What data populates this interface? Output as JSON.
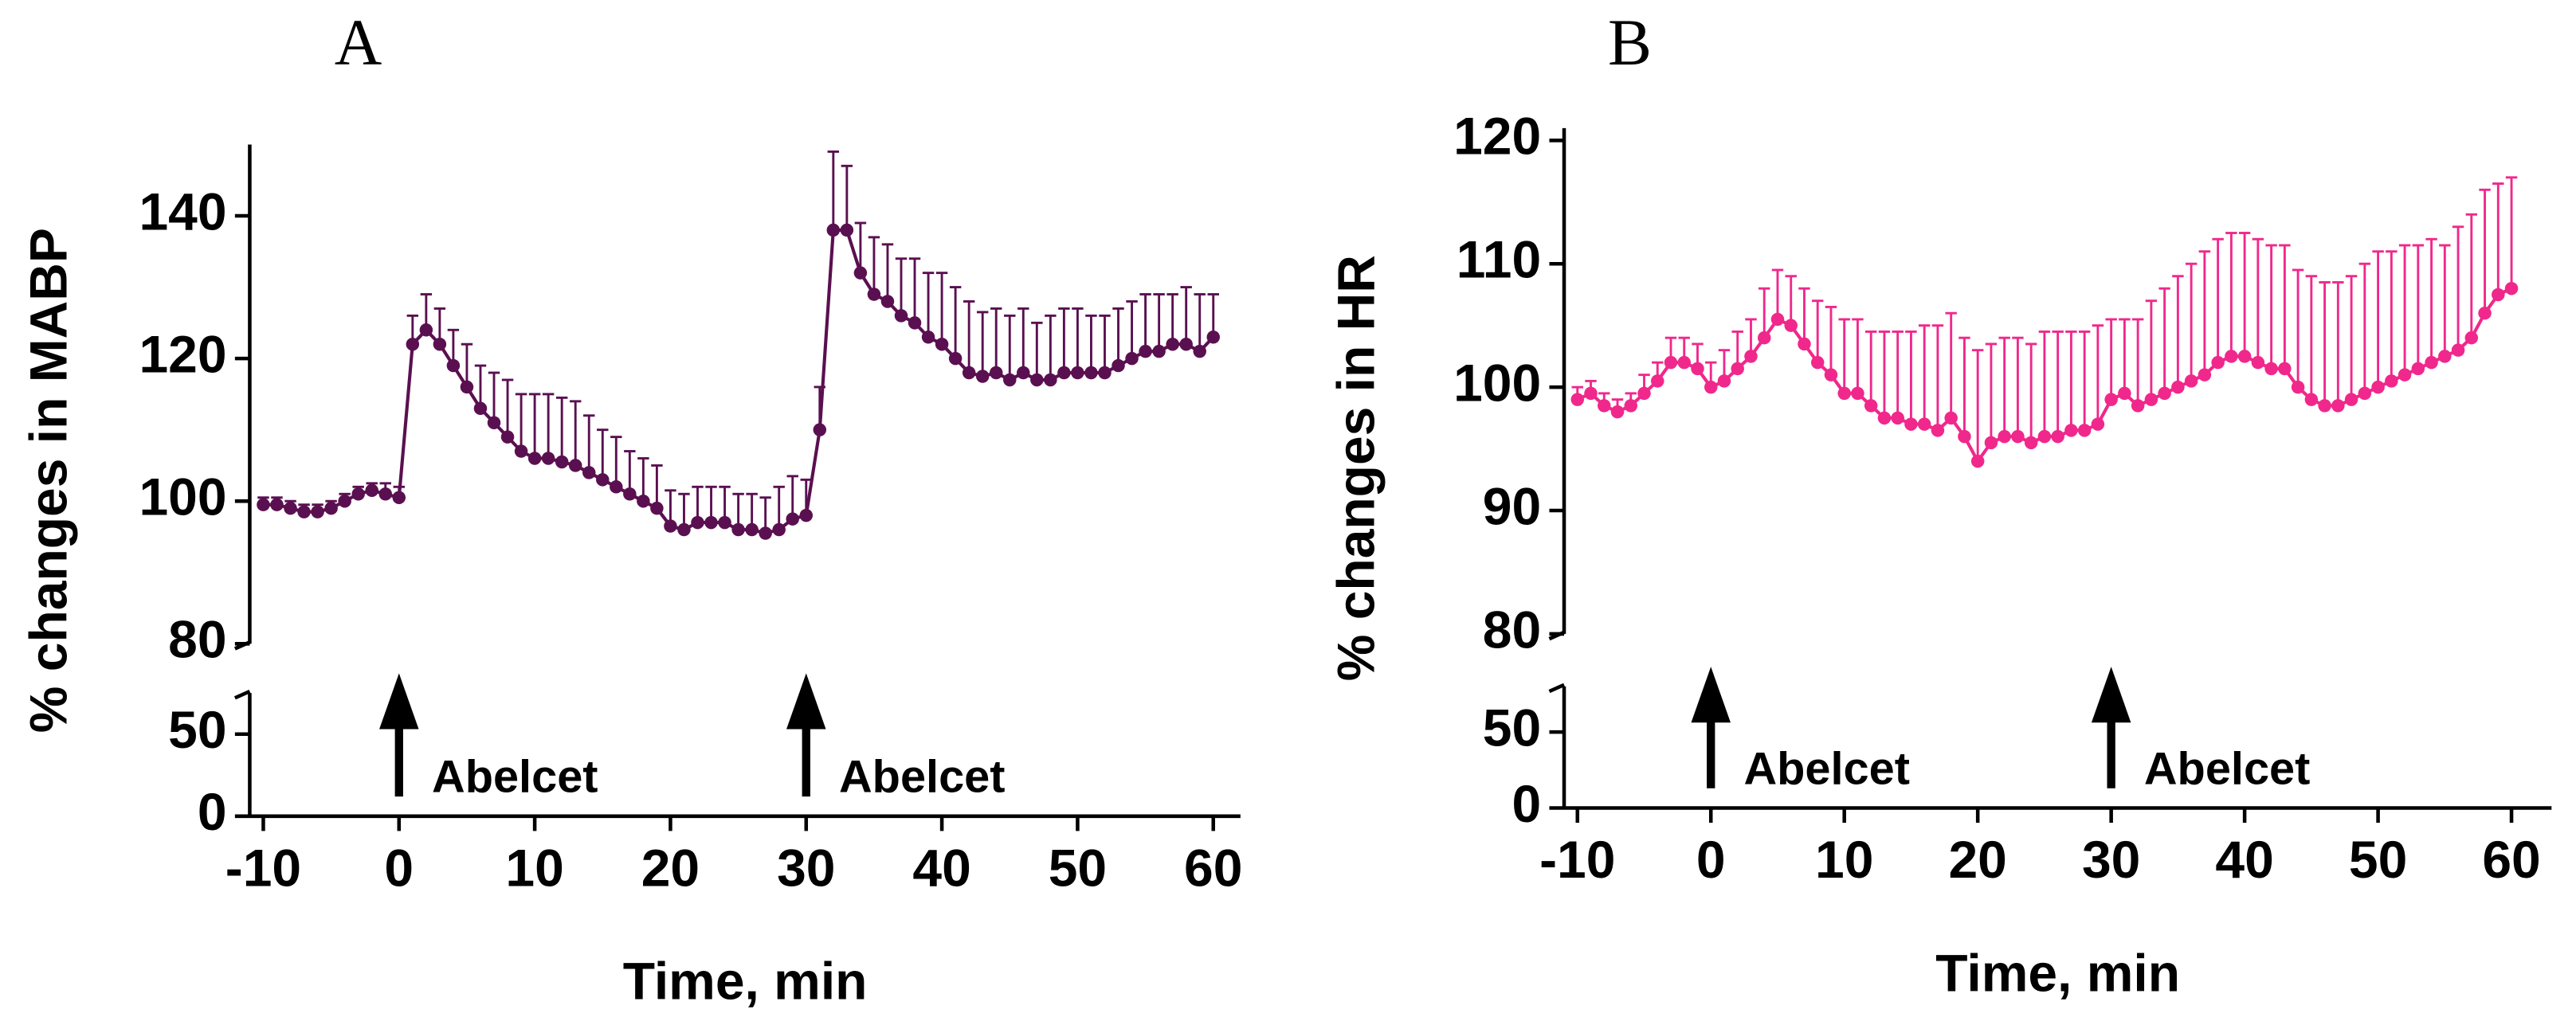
{
  "chart_data": [
    {
      "type": "line",
      "title": "A",
      "xlabel": "Time, min",
      "ylabel": "% changes in MABP",
      "x": [
        -10,
        -9,
        -8,
        -7,
        -6,
        -5,
        -4,
        -3,
        -2,
        -1,
        0,
        1,
        2,
        3,
        4,
        5,
        6,
        7,
        8,
        9,
        10,
        11,
        12,
        13,
        14,
        15,
        16,
        17,
        18,
        19,
        20,
        21,
        22,
        23,
        24,
        25,
        26,
        27,
        28,
        29,
        30,
        31,
        32,
        33,
        34,
        35,
        36,
        37,
        38,
        39,
        40,
        41,
        42,
        43,
        44,
        45,
        46,
        47,
        48,
        49,
        50,
        51,
        52,
        53,
        54,
        55,
        56,
        57,
        58,
        59,
        60
      ],
      "series": [
        {
          "color": "#5a1050",
          "values": [
            99.5,
            99.5,
            99,
            98.5,
            98.5,
            99,
            100,
            101,
            101.5,
            101,
            100.5,
            122,
            124,
            122,
            119,
            116,
            113,
            111,
            109,
            107,
            106,
            106,
            105.5,
            105,
            104,
            103,
            102,
            101,
            100,
            99,
            96.5,
            96,
            97,
            97,
            97,
            96,
            96,
            95.5,
            96,
            97.5,
            98,
            110,
            138,
            138,
            132,
            129,
            128,
            126,
            125,
            123,
            122,
            120,
            118,
            117.5,
            118,
            117,
            118,
            117,
            117,
            118,
            118,
            118,
            118,
            119,
            120,
            121,
            121,
            122,
            122,
            121,
            123
          ],
          "errors": [
            1,
            1,
            1,
            1,
            1,
            1,
            1,
            1,
            1,
            1.5,
            1.5,
            4,
            5,
            5,
            5,
            6,
            6,
            7,
            8,
            8,
            9,
            9,
            9,
            9,
            8,
            7,
            7,
            6,
            6,
            6,
            5,
            5,
            5,
            5,
            5,
            5,
            5,
            5,
            6,
            6,
            5,
            6,
            11,
            9,
            7,
            8,
            8,
            8,
            9,
            9,
            10,
            10,
            10,
            9,
            9,
            9,
            9,
            8,
            9,
            9,
            9,
            8,
            8,
            8,
            8,
            8,
            8,
            7,
            8,
            8,
            6
          ]
        }
      ],
      "xlim": [
        -11,
        62
      ],
      "xticks": [
        -10,
        0,
        10,
        20,
        30,
        40,
        50,
        60
      ],
      "ylim": [
        80,
        150
      ],
      "yticks": [
        80,
        100,
        120,
        140
      ],
      "ylim_lower": [
        0,
        75
      ],
      "yticks_lower": [
        0,
        50
      ],
      "annotations": [
        {
          "text": "Abelcet",
          "x": 0
        },
        {
          "text": "Abelcet",
          "x": 30
        }
      ]
    },
    {
      "type": "line",
      "title": "B",
      "xlabel": "Time, min",
      "ylabel": "% changes in HR",
      "x": [
        -10,
        -9,
        -8,
        -7,
        -6,
        -5,
        -4,
        -3,
        -2,
        -1,
        0,
        1,
        2,
        3,
        4,
        5,
        6,
        7,
        8,
        9,
        10,
        11,
        12,
        13,
        14,
        15,
        16,
        17,
        18,
        19,
        20,
        21,
        22,
        23,
        24,
        25,
        26,
        27,
        28,
        29,
        30,
        31,
        32,
        33,
        34,
        35,
        36,
        37,
        38,
        39,
        40,
        41,
        42,
        43,
        44,
        45,
        46,
        47,
        48,
        49,
        50,
        51,
        52,
        53,
        54,
        55,
        56,
        57,
        58,
        59,
        60
      ],
      "series": [
        {
          "color": "#f0288c",
          "values": [
            99,
            99.5,
            98.5,
            98,
            98.5,
            99.5,
            100.5,
            102,
            102,
            101.5,
            100,
            100.5,
            101.5,
            102.5,
            104,
            105.5,
            105,
            103.5,
            102,
            101,
            99.5,
            99.5,
            98.5,
            97.5,
            97.5,
            97,
            97,
            96.5,
            97.5,
            96,
            94,
            95.5,
            96,
            96,
            95.5,
            96,
            96,
            96.5,
            96.5,
            97,
            99,
            99.5,
            98.5,
            99,
            99.5,
            100,
            100.5,
            101,
            102,
            102.5,
            102.5,
            102,
            101.5,
            101.5,
            100,
            99,
            98.5,
            98.5,
            99,
            99.5,
            100,
            100.5,
            101,
            101.5,
            102,
            102.5,
            103,
            104,
            106,
            107.5,
            108
          ],
          "errors": [
            1,
            1,
            1,
            1,
            1,
            1.5,
            1.5,
            2,
            2,
            2,
            2,
            2.5,
            3,
            3,
            4,
            4,
            4,
            4.5,
            5,
            5.5,
            6,
            6,
            6,
            7,
            7,
            7.5,
            8,
            8.5,
            8.5,
            8,
            9,
            8,
            8,
            8,
            8,
            8.5,
            8.5,
            8,
            8,
            8,
            6.5,
            6,
            7,
            8,
            8.5,
            9,
            9.5,
            10,
            10,
            10,
            10,
            10,
            10,
            10,
            9.5,
            10,
            10,
            10,
            10,
            10.5,
            11,
            10.5,
            10.5,
            10,
            10,
            9,
            10,
            10,
            10,
            9,
            9
          ]
        }
      ],
      "xlim": [
        -11,
        63
      ],
      "xticks": [
        -10,
        0,
        10,
        20,
        30,
        40,
        50,
        60
      ],
      "ylim": [
        80,
        121
      ],
      "yticks": [
        80,
        90,
        100,
        110,
        120
      ],
      "ylim_lower": [
        0,
        80
      ],
      "yticks_lower": [
        0,
        50
      ],
      "annotations": [
        {
          "text": "Abelcet",
          "x": 0
        },
        {
          "text": "Abelcet",
          "x": 30
        }
      ]
    }
  ]
}
